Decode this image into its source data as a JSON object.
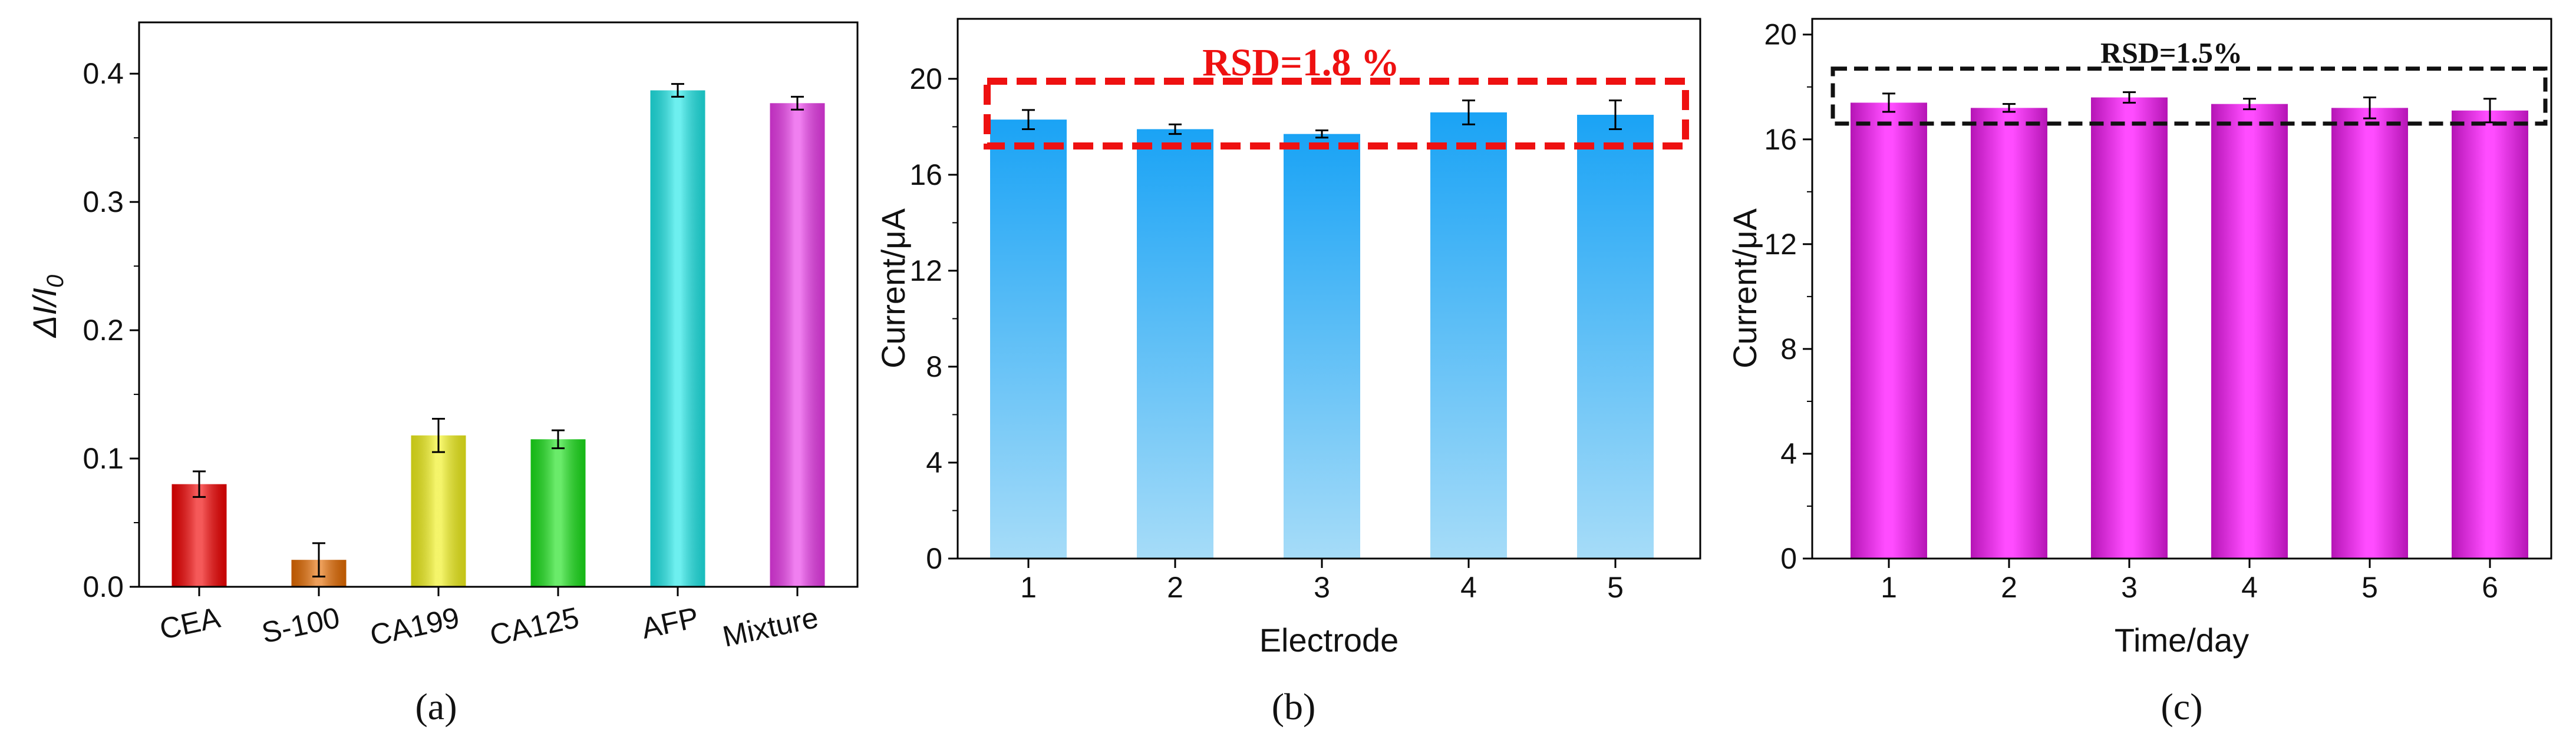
{
  "chart_data": [
    {
      "type": "bar",
      "panel_label": "(a)",
      "ylabel_main": "ΔI/I",
      "ylabel_sub": "0",
      "xlabel": "",
      "categories": [
        "CEA",
        "S-100",
        "CA199",
        "CA125",
        "AFP",
        "Mixture"
      ],
      "values": [
        0.08,
        0.021,
        0.118,
        0.115,
        0.387,
        0.377
      ],
      "errors": [
        0.01,
        0.013,
        0.013,
        0.007,
        0.005,
        0.005
      ],
      "colors": [
        "#f00000",
        "#e36a00",
        "#efef1a",
        "#1ae01a",
        "#1ee6e6",
        "#e83ae8"
      ],
      "ylim": [
        0,
        0.44
      ],
      "yticks": [
        "0.0",
        "0.1",
        "0.2",
        "0.3",
        "0.4"
      ],
      "ytick_values": [
        0,
        0.1,
        0.2,
        0.3,
        0.4
      ]
    },
    {
      "type": "bar",
      "panel_label": "(b)",
      "ylabel": "Current/μA",
      "xlabel": "Electrode",
      "categories": [
        "1",
        "2",
        "3",
        "4",
        "5"
      ],
      "values": [
        18.3,
        17.9,
        17.7,
        18.6,
        18.5
      ],
      "errors": [
        0.4,
        0.2,
        0.15,
        0.5,
        0.6
      ],
      "bar_gradient": [
        "#9dd9f7",
        "#1ea7f7"
      ],
      "ylim": [
        0,
        22.5
      ],
      "yticks": [
        "0",
        "4",
        "8",
        "12",
        "16",
        "20"
      ],
      "ytick_values": [
        0,
        4,
        8,
        12,
        16,
        20
      ],
      "annotation": "RSD=1.8 %",
      "annotation_color": "#ee1111",
      "annotation_box_range": [
        17.2,
        19.9
      ]
    },
    {
      "type": "bar",
      "panel_label": "(c)",
      "ylabel": "Current/μA",
      "xlabel": "Time/day",
      "categories": [
        "1",
        "2",
        "3",
        "4",
        "5",
        "6"
      ],
      "values": [
        17.4,
        17.2,
        17.6,
        17.35,
        17.2,
        17.1
      ],
      "errors": [
        0.35,
        0.15,
        0.2,
        0.2,
        0.4,
        0.45
      ],
      "bar_colors": [
        "#c019c0",
        "#ff44ff"
      ],
      "ylim": [
        0,
        20.6
      ],
      "yticks": [
        "0",
        "4",
        "8",
        "12",
        "16",
        "20"
      ],
      "ytick_values": [
        0,
        4,
        8,
        12,
        16,
        20
      ],
      "annotation": "RSD=1.5%",
      "annotation_color": "#111111",
      "annotation_box_range": [
        16.6,
        18.7
      ]
    }
  ]
}
